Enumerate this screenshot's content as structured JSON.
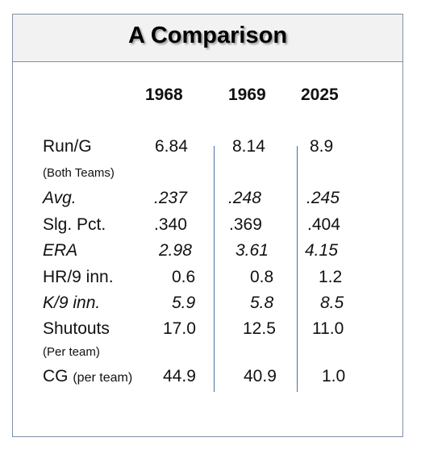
{
  "title": "A Comparison",
  "years": [
    "1968",
    "1969",
    "2025"
  ],
  "rows": [
    {
      "label": "Run/G",
      "sublabel": "(Both Teams)",
      "values": [
        "6.84",
        "8.14",
        "8.9"
      ],
      "italic": false
    },
    {
      "label": "Avg.",
      "values": [
        ".237",
        ".248",
        ".245"
      ],
      "italic": true
    },
    {
      "label": "Slg. Pct.",
      "values": [
        ".340",
        ".369",
        ".404"
      ],
      "italic": false
    },
    {
      "label": "ERA",
      "values": [
        "2.98",
        "3.61",
        "4.15"
      ],
      "italic": true
    },
    {
      "label": "HR/9 inn.",
      "values": [
        "0.6",
        "0.8",
        "1.2"
      ],
      "italic": false
    },
    {
      "label": "K/9 inn.",
      "values": [
        "5.9",
        "5.8",
        "8.5"
      ],
      "italic": true
    },
    {
      "label": "Shutouts",
      "sublabel": "(Per team)",
      "values": [
        "17.0",
        "12.5",
        "11.0"
      ],
      "italic": false
    },
    {
      "label": "CG",
      "label_suffix": "(per team)",
      "values": [
        "44.9",
        "40.9",
        "1.0"
      ],
      "italic": false
    }
  ],
  "colors": {
    "border": "#7f8fa6",
    "header_bg": "#f2f2f2",
    "divider": "#4a6fa5"
  }
}
